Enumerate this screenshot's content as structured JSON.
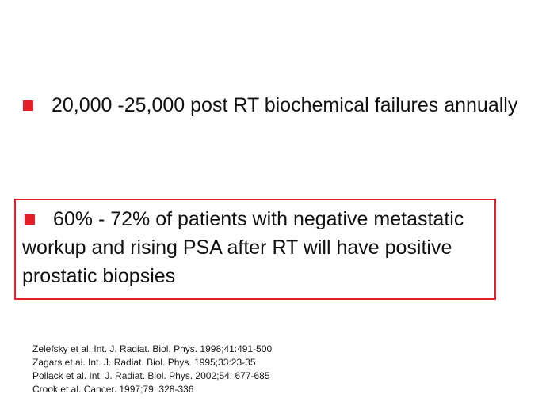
{
  "colors": {
    "accent_red": "#e3202a",
    "text": "#111111",
    "background": "#ffffff"
  },
  "bullets": [
    {
      "icon": "red-square-bullet",
      "text": "20,000 -25,000 post RT biochemical failures annually"
    },
    {
      "icon": "red-square-bullet",
      "text": "60% - 72% of patients with negative metastatic workup and rising PSA after RT will have positive prostatic biopsies"
    }
  ],
  "references": [
    "Zelefsky et al. Int. J. Radiat. Biol. Phys. 1998;41:491-500",
    "Zagars et al.  Int. J. Radiat. Biol. Phys.  1995;33:23-35",
    "Pollack et al. Int. J. Radiat. Biol. Phys. 2002;54: 677-685",
    "Crook et al. Cancer. 1997;79: 328-336"
  ]
}
